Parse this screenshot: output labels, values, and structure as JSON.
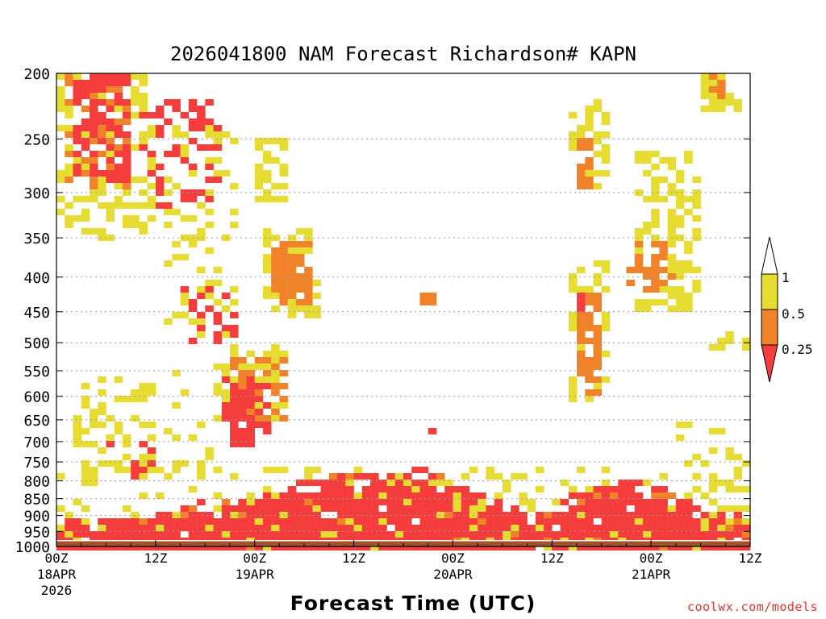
{
  "chart_data": {
    "type": "heatmap",
    "title": "2026041800 NAM Forecast Richardson# KAPN",
    "xlabel": "Forecast Time (UTC)",
    "ylabel": "",
    "y_axis": {
      "range": [
        1000,
        200
      ],
      "ticks": [
        200,
        250,
        300,
        350,
        400,
        450,
        500,
        550,
        600,
        650,
        700,
        750,
        800,
        850,
        900,
        950,
        1000
      ],
      "scale": "log",
      "grid": "dotted"
    },
    "x_axis": {
      "range_hours": [
        0,
        84
      ],
      "ticks": [
        {
          "hour": 0,
          "label": "00Z",
          "sub": "18APR",
          "sub2": "2026"
        },
        {
          "hour": 12,
          "label": "12Z",
          "sub": "",
          "sub2": ""
        },
        {
          "hour": 24,
          "label": "00Z",
          "sub": "19APR",
          "sub2": ""
        },
        {
          "hour": 36,
          "label": "12Z",
          "sub": "",
          "sub2": ""
        },
        {
          "hour": 48,
          "label": "00Z",
          "sub": "20APR",
          "sub2": ""
        },
        {
          "hour": 60,
          "label": "12Z",
          "sub": "",
          "sub2": ""
        },
        {
          "hour": 72,
          "label": "00Z",
          "sub": "21APR",
          "sub2": ""
        },
        {
          "hour": 84,
          "label": "12Z",
          "sub": "",
          "sub2": ""
        }
      ]
    },
    "colorbar": {
      "levels": [
        "0.25",
        "0.5",
        "1"
      ],
      "bins": [
        {
          "name": "below 0.25",
          "color": "#f53d3d"
        },
        {
          "name": "0.25 to 0.5",
          "color": "#f0822a"
        },
        {
          "name": "0.5 to 1",
          "color": "#e6dc32"
        },
        {
          "name": "above 1",
          "color": "#ffffff"
        }
      ]
    },
    "colors": {
      "lt025": "#f53d3d",
      "r025_05": "#f0822a",
      "r05_1": "#e6dc32",
      "ground": "#a0522d"
    },
    "ground_pressure_hpa": 975,
    "regions": [
      {
        "cat": 3,
        "t": [
          0,
          12
        ],
        "p": [
          200,
          350
        ],
        "density": 0.35
      },
      {
        "cat": 2,
        "t": [
          1,
          9
        ],
        "p": [
          200,
          300
        ],
        "density": 0.35
      },
      {
        "cat": 1,
        "t": [
          2,
          9
        ],
        "p": [
          200,
          290
        ],
        "density": 0.55
      },
      {
        "cat": 1,
        "t": [
          10,
          20
        ],
        "p": [
          220,
          320
        ],
        "density": 0.3
      },
      {
        "cat": 3,
        "t": [
          13,
          22
        ],
        "p": [
          240,
          500
        ],
        "density": 0.25
      },
      {
        "cat": 1,
        "t": [
          15,
          22
        ],
        "p": [
          400,
          500
        ],
        "density": 0.35
      },
      {
        "cat": 3,
        "t": [
          24,
          28
        ],
        "p": [
          250,
          310
        ],
        "density": 0.6
      },
      {
        "cat": 2,
        "t": [
          26,
          31
        ],
        "p": [
          350,
          440
        ],
        "density": 0.75
      },
      {
        "cat": 3,
        "t": [
          25,
          32
        ],
        "p": [
          340,
          460
        ],
        "density": 0.45
      },
      {
        "cat": 3,
        "t": [
          19,
          28
        ],
        "p": [
          500,
          650
        ],
        "density": 0.5
      },
      {
        "cat": 2,
        "t": [
          21,
          28
        ],
        "p": [
          520,
          660
        ],
        "density": 0.4
      },
      {
        "cat": 1,
        "t": [
          20,
          26
        ],
        "p": [
          560,
          720
        ],
        "density": 0.55
      },
      {
        "cat": 3,
        "t": [
          2,
          12
        ],
        "p": [
          560,
          800
        ],
        "density": 0.35
      },
      {
        "cat": 1,
        "t": [
          6,
          12
        ],
        "p": [
          700,
          800
        ],
        "density": 0.35
      },
      {
        "cat": 3,
        "t": [
          13,
          19
        ],
        "p": [
          550,
          780
        ],
        "density": 0.2
      },
      {
        "cat": 2,
        "t": [
          44,
          46
        ],
        "p": [
          420,
          440
        ],
        "density": 1.0
      },
      {
        "cat": 1,
        "t": [
          45,
          46
        ],
        "p": [
          670,
          690
        ],
        "density": 1.0
      },
      {
        "cat": 3,
        "t": [
          62,
          67
        ],
        "p": [
          220,
          300
        ],
        "density": 0.45
      },
      {
        "cat": 2,
        "t": [
          63,
          65
        ],
        "p": [
          250,
          300
        ],
        "density": 0.5
      },
      {
        "cat": 3,
        "t": [
          70,
          78
        ],
        "p": [
          260,
          450
        ],
        "density": 0.45
      },
      {
        "cat": 2,
        "t": [
          69,
          75
        ],
        "p": [
          350,
          420
        ],
        "density": 0.4
      },
      {
        "cat": 3,
        "t": [
          62,
          67
        ],
        "p": [
          380,
          640
        ],
        "density": 0.35
      },
      {
        "cat": 2,
        "t": [
          63,
          66
        ],
        "p": [
          420,
          600
        ],
        "density": 0.55
      },
      {
        "cat": 1,
        "t": [
          63,
          64
        ],
        "p": [
          420,
          450
        ],
        "density": 1.0
      },
      {
        "cat": 3,
        "t": [
          78,
          83
        ],
        "p": [
          200,
          230
        ],
        "density": 0.6
      },
      {
        "cat": 2,
        "t": [
          79,
          82
        ],
        "p": [
          200,
          220
        ],
        "density": 0.6
      },
      {
        "cat": 3,
        "t": [
          79,
          84
        ],
        "p": [
          480,
          520
        ],
        "density": 0.2
      },
      {
        "cat": 3,
        "t": [
          75,
          84
        ],
        "p": [
          650,
          900
        ],
        "density": 0.2
      },
      {
        "cat": 3,
        "t": [
          0,
          84
        ],
        "p": [
          760,
          960
        ],
        "density": 0.15
      }
    ],
    "bl_top_profile": [
      {
        "hour": 0,
        "p": 920
      },
      {
        "hour": 12,
        "p": 900
      },
      {
        "hour": 18,
        "p": 850
      },
      {
        "hour": 24,
        "p": 825
      },
      {
        "hour": 32,
        "p": 790
      },
      {
        "hour": 44,
        "p": 760
      },
      {
        "hour": 48,
        "p": 800
      },
      {
        "hour": 54,
        "p": 860
      },
      {
        "hour": 58,
        "p": 880
      },
      {
        "hour": 62,
        "p": 840
      },
      {
        "hour": 68,
        "p": 790
      },
      {
        "hour": 74,
        "p": 820
      },
      {
        "hour": 78,
        "p": 880
      },
      {
        "hour": 84,
        "p": 900
      }
    ]
  },
  "credit": "coolwx.com/models"
}
